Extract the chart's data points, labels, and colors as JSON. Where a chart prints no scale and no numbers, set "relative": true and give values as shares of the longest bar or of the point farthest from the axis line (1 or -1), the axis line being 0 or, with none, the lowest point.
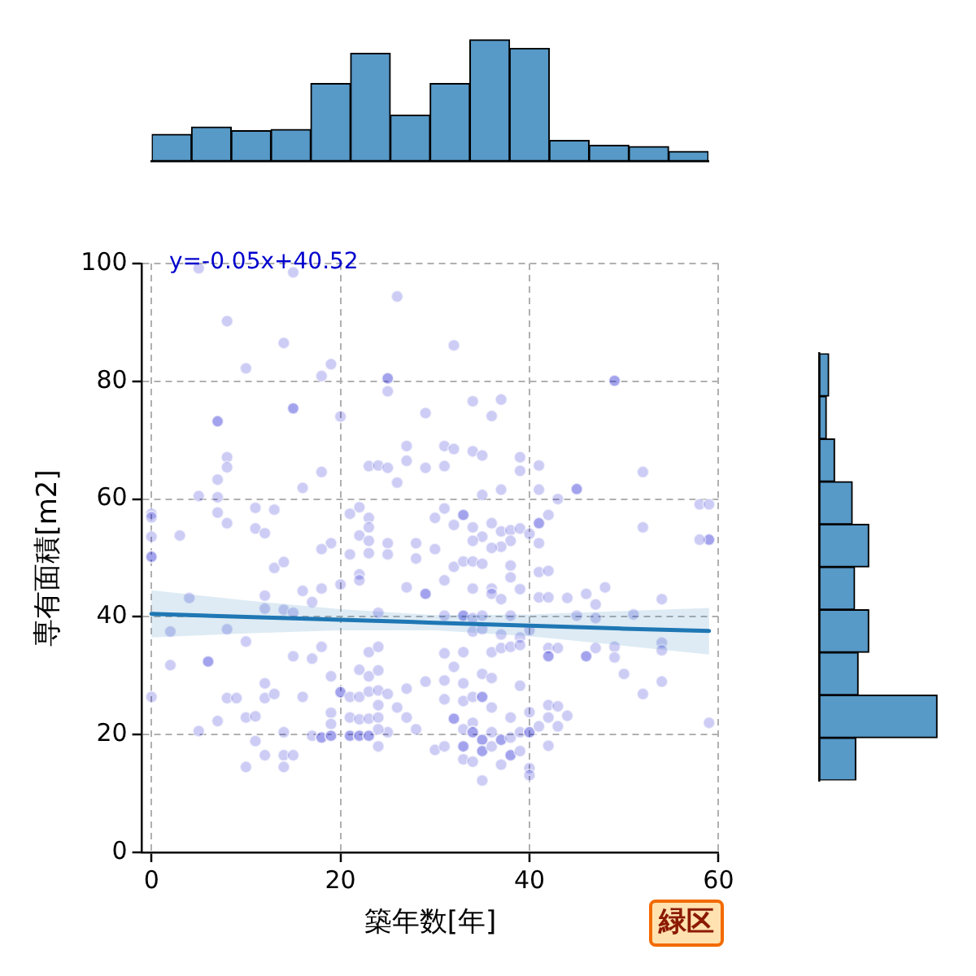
{
  "chart_data": [
    {
      "type": "scatter",
      "xlabel": "築年数[年]",
      "ylabel": "専有面積[m2]",
      "xlim": [
        -1,
        60
      ],
      "ylim": [
        0,
        100
      ],
      "xticks": [
        0,
        20,
        40,
        60
      ],
      "yticks": [
        0,
        20,
        40,
        60,
        80,
        100
      ],
      "grid": true,
      "marker": "circle",
      "annotations": [
        "y=-0.05x+40.52",
        "緑区"
      ],
      "series": [
        {
          "type": "scatter",
          "color": "#0000cd",
          "x": [
            5,
            15,
            26,
            8,
            14,
            10,
            19,
            18,
            25,
            25,
            25,
            15,
            15,
            7,
            7,
            20,
            29,
            8,
            8,
            7,
            5,
            7,
            7,
            8,
            3,
            0,
            0,
            0,
            11,
            13,
            11,
            12,
            16,
            18,
            23,
            24,
            25,
            27,
            27,
            26,
            29,
            22,
            21,
            23,
            23,
            22,
            23,
            25,
            28,
            30,
            19,
            18,
            32,
            49,
            49,
            34,
            37,
            36,
            31,
            32,
            34,
            35,
            39,
            39,
            41,
            31,
            52,
            35,
            37,
            41,
            43,
            45,
            45,
            58,
            59,
            59,
            59,
            58,
            52,
            31,
            33,
            33,
            32,
            34,
            36,
            37,
            38,
            38,
            37,
            39,
            41,
            41,
            42,
            41,
            40,
            35,
            34,
            30,
            36,
            0,
            0,
            13,
            14,
            21,
            23,
            25,
            28,
            22,
            22,
            20,
            18,
            16,
            17,
            12,
            12,
            14,
            15,
            27,
            29,
            29,
            24,
            4,
            2,
            8,
            10,
            15,
            17,
            18,
            23,
            24,
            6,
            6,
            2,
            19,
            22,
            23,
            24,
            0,
            8,
            9,
            12,
            12,
            13,
            16,
            20,
            20,
            21,
            22,
            23,
            24,
            25,
            27,
            29,
            7,
            5,
            10,
            11,
            14,
            19,
            19,
            17,
            18,
            18,
            19,
            19,
            21,
            22,
            23,
            24,
            25,
            21,
            21,
            22,
            22,
            23,
            23,
            24,
            11,
            12,
            14,
            15,
            10,
            14,
            28,
            26,
            27,
            24,
            24,
            32,
            33,
            34,
            35,
            31,
            34,
            36,
            36,
            38,
            38,
            37,
            39,
            41,
            42,
            41,
            42,
            44,
            46,
            47,
            48,
            54,
            31,
            33,
            33,
            34,
            35,
            34,
            35,
            37,
            39,
            38,
            40,
            45,
            47,
            51,
            31,
            33,
            32,
            36,
            37,
            38,
            39,
            42,
            42,
            42,
            43,
            46,
            46,
            47,
            49,
            49,
            54,
            54,
            50,
            52,
            54,
            59,
            31,
            33,
            35,
            36,
            39,
            31,
            33,
            34,
            35,
            35,
            36,
            38,
            40,
            42,
            43,
            44,
            42,
            43,
            32,
            32,
            33,
            34,
            34,
            34,
            30,
            31,
            33,
            33,
            33,
            35,
            35,
            35,
            35,
            36,
            36,
            37,
            37,
            38,
            38,
            38,
            37,
            39,
            40,
            40,
            39,
            40,
            40,
            35,
            34,
            42,
            41
          ],
          "values": [
            99.2,
            98.5,
            94.4,
            90.2,
            86.5,
            82.2,
            82.9,
            80.9,
            80.5,
            80.5,
            78.3,
            75.4,
            75.4,
            73.2,
            73.2,
            74.0,
            74.6,
            67.1,
            65.4,
            63.3,
            60.5,
            60.3,
            57.7,
            55.9,
            53.8,
            57.5,
            56.9,
            53.6,
            58.5,
            58.2,
            55.0,
            54.2,
            61.9,
            64.6,
            65.6,
            65.7,
            65.3,
            69.0,
            66.5,
            62.8,
            65.3,
            58.6,
            57.5,
            56.8,
            55.2,
            53.8,
            52.9,
            52.5,
            52.5,
            56.8,
            52.5,
            51.5,
            86.1,
            80.1,
            80.1,
            76.6,
            76.9,
            74.1,
            69.0,
            68.5,
            68.1,
            67.4,
            67.1,
            64.8,
            65.7,
            65.6,
            64.6,
            60.7,
            61.6,
            61.6,
            60.0,
            61.7,
            61.7,
            59.1,
            59.1,
            53.1,
            53.1,
            53.1,
            55.2,
            58.4,
            57.3,
            57.3,
            55.6,
            55.2,
            55.9,
            54.5,
            54.7,
            52.9,
            51.9,
            55.0,
            55.9,
            55.9,
            57.3,
            52.5,
            54.1,
            53.6,
            52.9,
            51.5,
            51.7,
            50.2,
            50.2,
            48.3,
            49.3,
            50.6,
            50.8,
            50.6,
            49.9,
            47.2,
            46.2,
            45.5,
            44.8,
            44.4,
            42.5,
            43.6,
            41.4,
            41.2,
            40.7,
            45.0,
            43.9,
            43.9,
            40.7,
            43.2,
            37.5,
            37.9,
            35.8,
            33.3,
            32.9,
            34.9,
            34.0,
            34.9,
            32.4,
            32.4,
            31.8,
            29.9,
            31.0,
            29.9,
            30.9,
            26.4,
            26.2,
            26.2,
            28.7,
            26.2,
            26.9,
            26.4,
            27.2,
            27.2,
            26.4,
            26.4,
            27.3,
            27.5,
            26.9,
            27.8,
            29.0,
            22.3,
            20.6,
            22.9,
            23.1,
            20.4,
            23.7,
            21.8,
            19.8,
            19.5,
            19.5,
            19.8,
            19.8,
            22.9,
            22.6,
            22.7,
            22.9,
            20.4,
            19.8,
            19.8,
            19.8,
            19.8,
            19.8,
            19.8,
            18.0,
            18.9,
            16.5,
            16.5,
            16.5,
            14.5,
            14.5,
            20.9,
            24.6,
            22.9,
            25.0,
            20.9,
            48.5,
            49.4,
            49.4,
            49.0,
            46.2,
            44.8,
            44.8,
            43.9,
            48.7,
            46.7,
            43.0,
            44.7,
            47.6,
            47.8,
            43.3,
            43.3,
            43.2,
            43.9,
            42.1,
            45.0,
            43.0,
            40.2,
            40.2,
            40.2,
            39.8,
            40.2,
            37.5,
            37.9,
            37.0,
            36.5,
            40.2,
            37.7,
            40.2,
            39.8,
            40.4,
            33.8,
            34.0,
            31.5,
            34.0,
            34.7,
            34.9,
            35.2,
            34.7,
            33.3,
            33.3,
            34.7,
            33.3,
            33.3,
            34.7,
            34.9,
            33.1,
            35.6,
            34.3,
            30.3,
            26.9,
            29.0,
            22.0,
            29.2,
            28.7,
            30.3,
            29.6,
            28.3,
            26.0,
            25.7,
            26.4,
            26.4,
            26.4,
            24.6,
            22.9,
            23.8,
            25.0,
            24.8,
            23.2,
            22.9,
            21.4,
            22.7,
            22.7,
            20.9,
            22.0,
            20.4,
            20.4,
            17.4,
            18.0,
            18.0,
            18.0,
            15.8,
            19.1,
            19.1,
            17.2,
            17.2,
            18.0,
            20.4,
            19.1,
            19.1,
            19.5,
            16.5,
            16.5,
            14.9,
            20.4,
            20.4,
            20.4,
            17.2,
            14.3,
            13.1,
            12.2,
            15.4,
            18.1,
            21.4
          ]
        },
        {
          "type": "line",
          "color": "#1f77b4",
          "marker": "none",
          "x": [
            0,
            10,
            20,
            30,
            40,
            50,
            59
          ],
          "values": [
            40.5,
            40.0,
            39.5,
            39.0,
            38.5,
            38.0,
            37.6
          ],
          "lower": [
            36.5,
            37.2,
            37.7,
            37.7,
            36.7,
            35.1,
            33.6
          ],
          "upper": [
            44.5,
            42.8,
            41.3,
            40.3,
            40.4,
            41.0,
            41.5
          ]
        }
      ]
    },
    {
      "type": "bar",
      "relative": true,
      "color": "#5799c7",
      "categories": [
        null,
        null,
        null,
        null,
        null,
        null,
        null,
        null,
        null,
        null,
        null,
        null,
        null,
        null
      ],
      "values": [
        0.22,
        0.28,
        0.25,
        0.26,
        0.64,
        0.89,
        0.38,
        0.64,
        1,
        0.93,
        0.17,
        0.13,
        0.12,
        0.08
      ]
    },
    {
      "type": "bar",
      "orientation": "horizontal",
      "relative": true,
      "color": "#5799c7",
      "categories": [
        null,
        null,
        null,
        null,
        null,
        null,
        null,
        null,
        null,
        null
      ],
      "values": [
        0.08,
        0.06,
        0.13,
        0.28,
        0.42,
        0.3,
        0.42,
        0.33,
        1,
        0.31
      ]
    }
  ]
}
